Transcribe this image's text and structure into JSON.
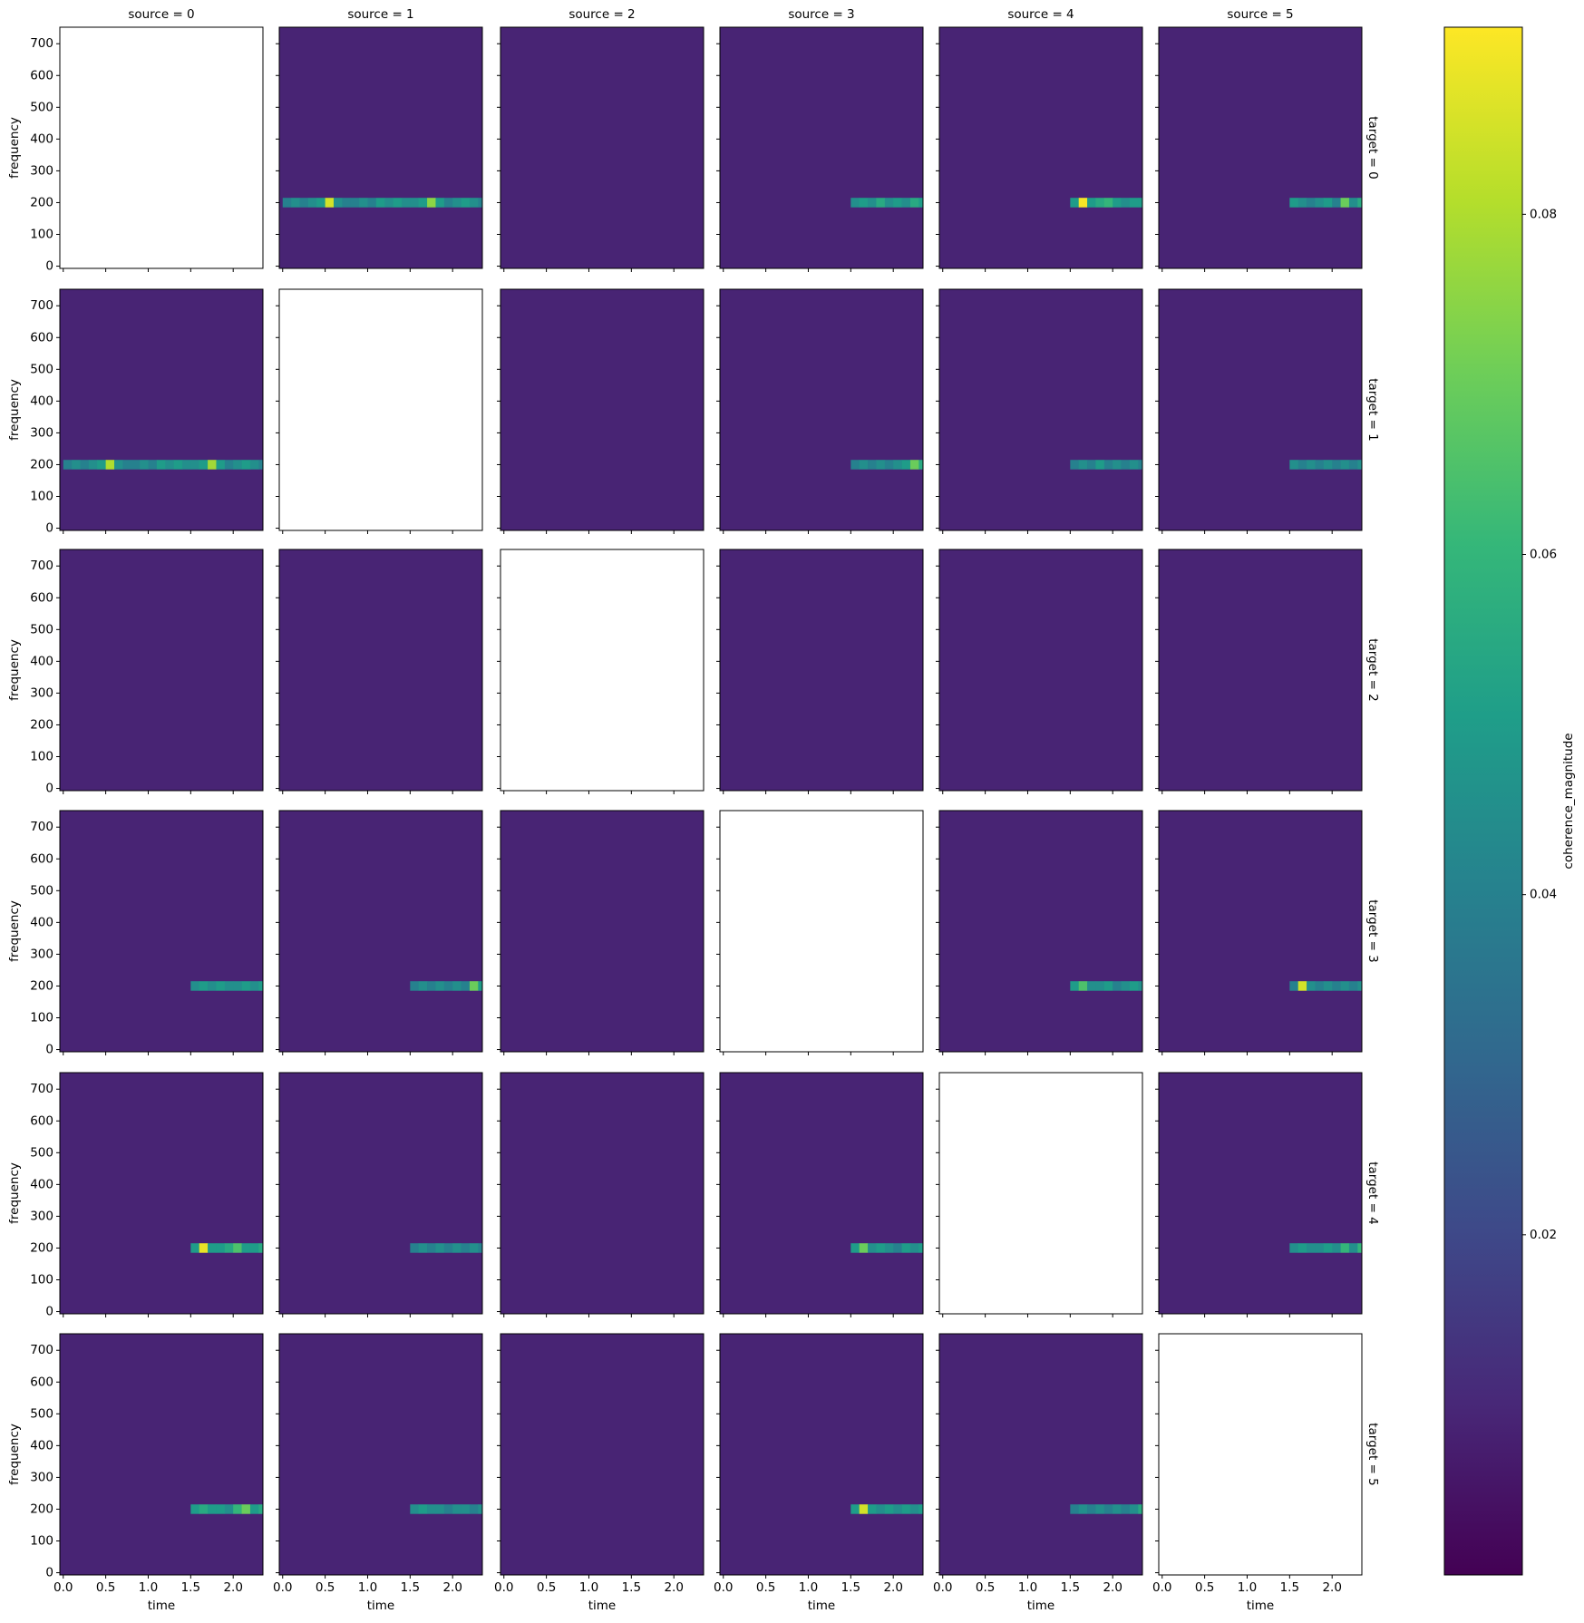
{
  "chart_data": {
    "type": "heatmap",
    "col_titles": [
      "source = 0",
      "source = 1",
      "source = 2",
      "source = 3",
      "source = 4",
      "source = 5"
    ],
    "row_titles": [
      "target = 0",
      "target = 1",
      "target = 2",
      "target = 3",
      "target = 4",
      "target = 5"
    ],
    "xlabel": "time",
    "ylabel": "frequency",
    "xlim": [
      -0.04,
      2.35
    ],
    "ylim": [
      -7,
      752
    ],
    "xticks": [
      {
        "value": 0,
        "label": "0.0"
      },
      0.5,
      {
        "value": 1,
        "label": "1.0"
      },
      1.5,
      {
        "value": 2,
        "label": "2.0"
      }
    ],
    "yticks": [
      0,
      100,
      200,
      300,
      400,
      500,
      600,
      700
    ],
    "x": [
      0,
      0.1,
      0.2,
      0.3,
      0.4,
      0.5,
      0.6,
      0.7,
      0.8,
      0.9,
      1.0,
      1.1,
      1.2,
      1.3,
      1.4,
      1.5,
      1.6,
      1.7,
      1.8,
      1.9,
      2.0,
      2.1,
      2.2,
      2.3,
      2.4
    ],
    "band_ylim": [
      185,
      215
    ],
    "colormap": "viridis",
    "colorbar": {
      "label": "coherence_magnitude",
      "lim": [
        0.0,
        0.091
      ],
      "ticks": [
        0.02,
        0.04,
        0.06,
        0.08
      ]
    },
    "panels": [
      [
        null,
        {
          "background": 0.009,
          "band": [
            0.04,
            0.045,
            0.04,
            0.045,
            0.05,
            0.085,
            0.045,
            0.04,
            0.04,
            0.045,
            0.04,
            0.05,
            0.045,
            0.05,
            0.045,
            0.045,
            0.05,
            0.075,
            0.05,
            0.04,
            0.045,
            0.05,
            0.045,
            0.04
          ]
        },
        {
          "background": 0.009
        },
        {
          "background": 0.009,
          "band": [
            null,
            null,
            null,
            null,
            null,
            null,
            null,
            null,
            null,
            null,
            null,
            null,
            null,
            null,
            null,
            0.045,
            0.05,
            0.045,
            0.055,
            0.045,
            0.05,
            0.045,
            0.055,
            0.05
          ]
        },
        {
          "background": 0.009,
          "band": [
            null,
            null,
            null,
            null,
            null,
            null,
            null,
            null,
            null,
            null,
            null,
            null,
            null,
            null,
            null,
            0.05,
            0.09,
            0.05,
            0.055,
            0.06,
            0.05,
            0.045,
            0.05,
            0.05
          ]
        },
        {
          "background": 0.009,
          "band": [
            null,
            null,
            null,
            null,
            null,
            null,
            null,
            null,
            null,
            null,
            null,
            null,
            null,
            null,
            null,
            0.05,
            0.045,
            0.04,
            0.045,
            0.05,
            0.04,
            0.07,
            0.045,
            0.055
          ]
        }
      ],
      [
        {
          "background": 0.009,
          "band": [
            0.04,
            0.045,
            0.04,
            0.045,
            0.05,
            0.08,
            0.045,
            0.04,
            0.04,
            0.045,
            0.04,
            0.05,
            0.045,
            0.05,
            0.045,
            0.045,
            0.05,
            0.078,
            0.05,
            0.04,
            0.045,
            0.05,
            0.045,
            0.04
          ]
        },
        null,
        {
          "background": 0.009
        },
        {
          "background": 0.009,
          "band": [
            null,
            null,
            null,
            null,
            null,
            null,
            null,
            null,
            null,
            null,
            null,
            null,
            null,
            null,
            null,
            0.04,
            0.045,
            0.04,
            0.045,
            0.04,
            0.045,
            0.05,
            0.07,
            0.055
          ]
        },
        {
          "background": 0.009,
          "band": [
            null,
            null,
            null,
            null,
            null,
            null,
            null,
            null,
            null,
            null,
            null,
            null,
            null,
            null,
            null,
            0.04,
            0.045,
            0.04,
            0.05,
            0.04,
            0.045,
            0.04,
            0.045,
            0.04
          ]
        },
        {
          "background": 0.009,
          "band": [
            null,
            null,
            null,
            null,
            null,
            null,
            null,
            null,
            null,
            null,
            null,
            null,
            null,
            null,
            null,
            0.045,
            0.04,
            0.045,
            0.04,
            0.045,
            0.04,
            0.045,
            0.04,
            0.045
          ]
        }
      ],
      [
        {
          "background": 0.009
        },
        {
          "background": 0.009
        },
        null,
        {
          "background": 0.009
        },
        {
          "background": 0.009
        },
        {
          "background": 0.009
        }
      ],
      [
        {
          "background": 0.009,
          "band": [
            null,
            null,
            null,
            null,
            null,
            null,
            null,
            null,
            null,
            null,
            null,
            null,
            null,
            null,
            null,
            0.045,
            0.05,
            0.045,
            0.05,
            0.045,
            0.045,
            0.05,
            0.045,
            0.05
          ]
        },
        {
          "background": 0.009,
          "band": [
            null,
            null,
            null,
            null,
            null,
            null,
            null,
            null,
            null,
            null,
            null,
            null,
            null,
            null,
            null,
            0.04,
            0.045,
            0.04,
            0.045,
            0.04,
            0.045,
            0.04,
            0.07,
            0.05
          ]
        },
        {
          "background": 0.009
        },
        null,
        {
          "background": 0.009,
          "band": [
            null,
            null,
            null,
            null,
            null,
            null,
            null,
            null,
            null,
            null,
            null,
            null,
            null,
            null,
            null,
            0.05,
            0.065,
            0.045,
            0.045,
            0.05,
            0.04,
            0.045,
            0.05,
            0.045
          ]
        },
        {
          "background": 0.009,
          "band": [
            null,
            null,
            null,
            null,
            null,
            null,
            null,
            null,
            null,
            null,
            null,
            null,
            null,
            null,
            null,
            0.04,
            0.085,
            0.045,
            0.04,
            0.045,
            0.04,
            0.045,
            0.04,
            0.045
          ]
        }
      ],
      [
        {
          "background": 0.009,
          "band": [
            null,
            null,
            null,
            null,
            null,
            null,
            null,
            null,
            null,
            null,
            null,
            null,
            null,
            null,
            null,
            0.05,
            0.088,
            0.05,
            0.05,
            0.055,
            0.065,
            0.05,
            0.05,
            0.055
          ]
        },
        {
          "background": 0.009,
          "band": [
            null,
            null,
            null,
            null,
            null,
            null,
            null,
            null,
            null,
            null,
            null,
            null,
            null,
            null,
            null,
            0.04,
            0.045,
            0.04,
            0.045,
            0.04,
            0.045,
            0.04,
            0.045,
            0.04
          ]
        },
        {
          "background": 0.009
        },
        {
          "background": 0.009,
          "band": [
            null,
            null,
            null,
            null,
            null,
            null,
            null,
            null,
            null,
            null,
            null,
            null,
            null,
            null,
            null,
            0.05,
            0.07,
            0.045,
            0.05,
            0.045,
            0.04,
            0.05,
            0.045,
            0.05
          ]
        },
        null,
        {
          "background": 0.009,
          "band": [
            null,
            null,
            null,
            null,
            null,
            null,
            null,
            null,
            null,
            null,
            null,
            null,
            null,
            null,
            null,
            0.045,
            0.05,
            0.045,
            0.045,
            0.05,
            0.045,
            0.06,
            0.045,
            0.06
          ]
        }
      ],
      [
        {
          "background": 0.009,
          "band": [
            null,
            null,
            null,
            null,
            null,
            null,
            null,
            null,
            null,
            null,
            null,
            null,
            null,
            null,
            null,
            0.05,
            0.055,
            0.05,
            0.05,
            0.045,
            0.06,
            0.07,
            0.05,
            0.055
          ]
        },
        {
          "background": 0.009,
          "band": [
            null,
            null,
            null,
            null,
            null,
            null,
            null,
            null,
            null,
            null,
            null,
            null,
            null,
            null,
            null,
            0.045,
            0.05,
            0.045,
            0.045,
            0.04,
            0.045,
            0.045,
            0.04,
            0.045
          ]
        },
        {
          "background": 0.009
        },
        {
          "background": 0.009,
          "band": [
            null,
            null,
            null,
            null,
            null,
            null,
            null,
            null,
            null,
            null,
            null,
            null,
            null,
            null,
            null,
            0.05,
            0.085,
            0.05,
            0.045,
            0.05,
            0.045,
            0.05,
            0.045,
            0.05
          ]
        },
        {
          "background": 0.009,
          "band": [
            null,
            null,
            null,
            null,
            null,
            null,
            null,
            null,
            null,
            null,
            null,
            null,
            null,
            null,
            null,
            0.04,
            0.045,
            0.04,
            0.045,
            0.04,
            0.045,
            0.04,
            0.045,
            0.055
          ]
        },
        null
      ]
    ]
  }
}
